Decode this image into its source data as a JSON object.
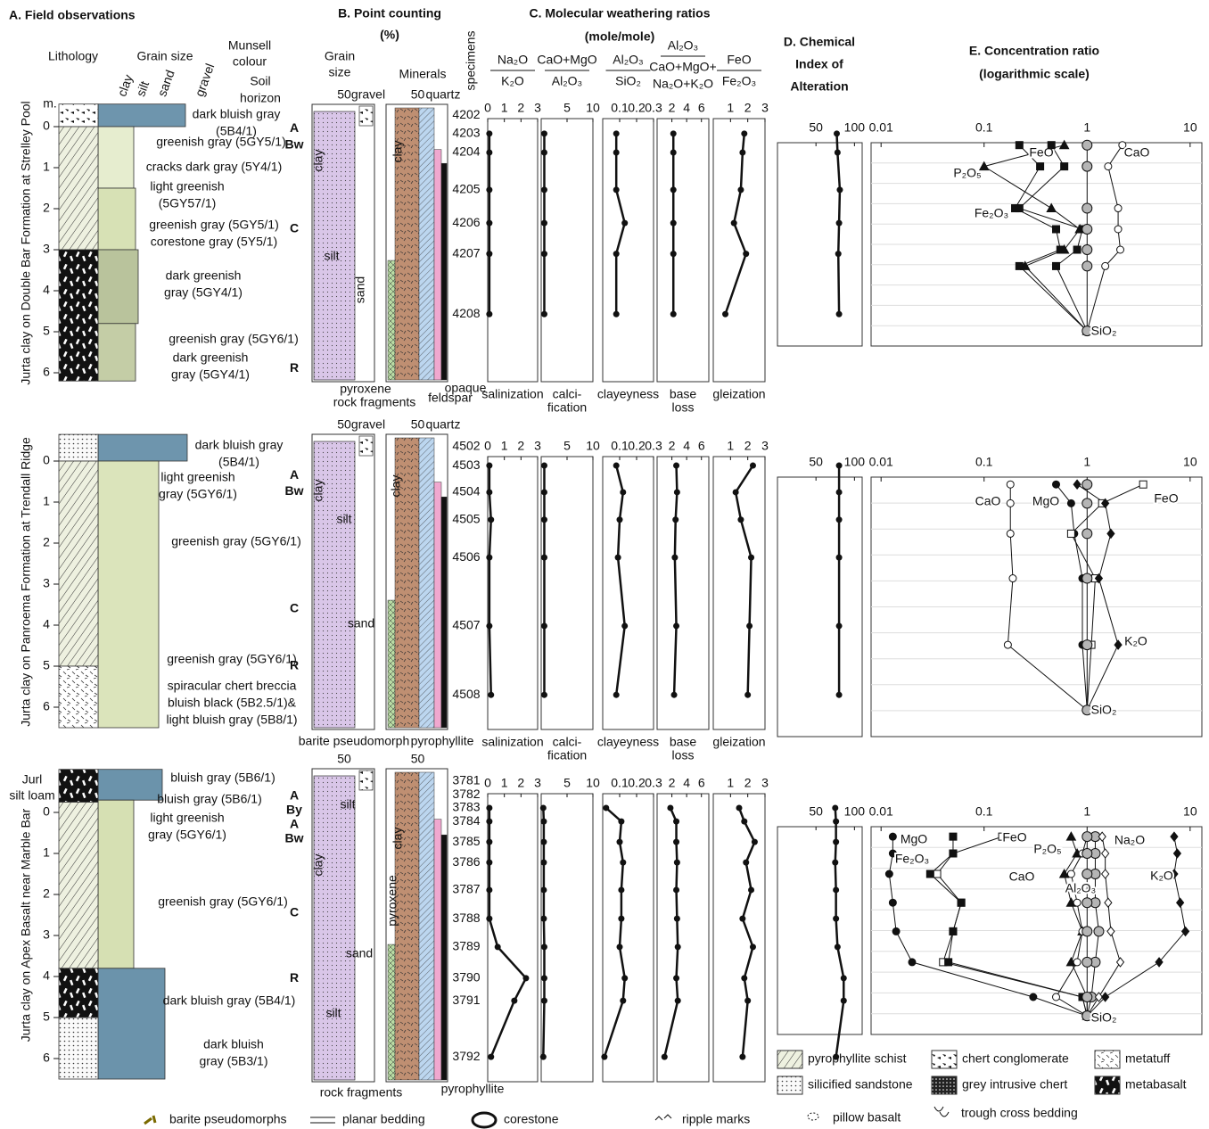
{
  "headers": {
    "field": "A. Field observations",
    "lithology": "Lithology",
    "grain_size": "Grain size",
    "munsell": [
      "Munsell",
      "colour"
    ],
    "horizon": [
      "Soil",
      "horizon"
    ],
    "grain_classes": [
      "clay",
      "silt",
      "sand",
      "gravel"
    ],
    "depth_unit": "m.",
    "point_counting": [
      "B. Point counting",
      "(%)"
    ],
    "pc_grain": [
      "Grain",
      "size"
    ],
    "pc_minerals": "Minerals",
    "ratios": [
      "C. Molecular weathering ratios",
      "(mole/mole)"
    ],
    "cia": [
      "D. Chemical",
      "Index of",
      "Alteration"
    ],
    "conc": [
      "E. Concentration ratio",
      "(logarithmic scale)"
    ],
    "specimens": "specimens"
  },
  "ratio_charts": [
    {
      "numerator": [
        "Na₂O"
      ],
      "denominator": [
        "K₂O"
      ],
      "name": [
        "salinization"
      ],
      "xlim": [
        0,
        3
      ],
      "xticks": [
        0,
        1,
        2,
        3
      ]
    },
    {
      "numerator": [
        "CaO+MgO"
      ],
      "denominator": [
        "Al₂O₃"
      ],
      "name": [
        "calci-",
        "fication"
      ],
      "xlim": [
        0,
        10
      ],
      "xticks": [
        5,
        10
      ]
    },
    {
      "numerator": [
        "Al₂O₃"
      ],
      "denominator": [
        "SiO₂"
      ],
      "name": [
        "clayeyness"
      ],
      "xlim": [
        0,
        0.3
      ],
      "xticks": [
        0.1,
        0.2,
        0.3
      ]
    },
    {
      "numerator": [
        "Al₂O₃"
      ],
      "denominator": [
        "CaO+MgO+",
        "Na₂O+K₂O"
      ],
      "name": [
        "base",
        "loss"
      ],
      "xlim": [
        0,
        7
      ],
      "xticks": [
        2,
        4,
        6
      ]
    },
    {
      "numerator": [
        "FeO"
      ],
      "denominator": [
        "Fe₂O₃"
      ],
      "name": [
        "gleization"
      ],
      "xlim": [
        0,
        3
      ],
      "xticks": [
        1,
        2,
        3
      ]
    }
  ],
  "cia_axis": {
    "xlim": [
      0,
      110
    ],
    "xticks": [
      50,
      100
    ]
  },
  "conc_axis": {
    "xlim": [
      0.008,
      13
    ],
    "xticks": [
      0.01,
      0.1,
      1,
      10
    ],
    "log": true
  },
  "profiles": [
    {
      "label": "Jurta clay on Double Bar Formation at Strelley Pool",
      "depth_ticks": [
        0,
        1,
        2,
        3,
        4,
        5,
        6
      ],
      "horizons": [
        {
          "text": "A",
          "depth": 0.05
        },
        {
          "text": "Bw",
          "depth": 0.45
        },
        {
          "text": "C",
          "depth": 2.5
        },
        {
          "text": "R",
          "depth": 5.9
        }
      ],
      "descriptions": [
        [
          "dark bluish gray",
          "(5B4/1)"
        ],
        [
          "greenish gray (5GY5/1)"
        ],
        [
          "cracks dark gray (5Y4/1)"
        ],
        [
          "light greenish",
          "(5GY57/1)"
        ],
        [
          "greenish gray (5GY5/1)",
          "corestone gray (5Y5/1)"
        ],
        [
          "dark greenish",
          "gray (5GY4/1)"
        ],
        [
          "greenish gray (5GY6/1)"
        ],
        [
          "dark greenish",
          "gray (5GY4/1)"
        ]
      ],
      "point_counting": {
        "grain_ticks": [
          50
        ],
        "mineral_ticks": [
          50
        ],
        "top": [
          "gravel",
          "quartz"
        ],
        "inside": [
          "clay",
          "silt",
          "sand",
          "clay"
        ],
        "bottom": [
          "pyroxene",
          "rock fragments",
          "feldspar",
          "opaque"
        ]
      },
      "specimens": [
        {
          "id": "4202",
          "depth": -0.28
        },
        {
          "id": "4203",
          "depth": 0.17
        },
        {
          "id": "4204",
          "depth": 0.63
        },
        {
          "id": "4205",
          "depth": 1.54
        },
        {
          "id": "4206",
          "depth": 2.35
        },
        {
          "id": "4207",
          "depth": 3.1
        },
        {
          "id": "4208",
          "depth": 4.57
        }
      ],
      "ratio_depths": [
        0.17,
        0.63,
        1.54,
        2.35,
        3.1,
        4.57
      ],
      "ratios": [
        [
          0.1,
          0.1,
          0.1,
          0.1,
          0.1,
          0.1
        ],
        [
          0.6,
          0.6,
          0.6,
          0.6,
          0.6,
          0.6
        ],
        [
          0.08,
          0.08,
          0.08,
          0.13,
          0.08,
          0.08
        ],
        [
          2.2,
          2.2,
          2.2,
          2.2,
          2.2,
          2.2
        ],
        [
          1.8,
          1.7,
          1.6,
          1.2,
          1.9,
          0.7
        ]
      ],
      "cia": [
        77,
        78,
        81,
        80,
        79,
        80
      ],
      "conc": {
        "depths": [
          0.45,
          0.97,
          1.99,
          2.5,
          3.0,
          3.4,
          4.98
        ],
        "series": [
          {
            "name": "FeO",
            "marker": "black-square",
            "values": [
              0.22,
              0.35,
              0.2,
              0.5,
              0.55,
              0.22,
              1
            ]
          },
          {
            "name": "P₂O₅",
            "marker": "triangle",
            "values": [
              0.6,
              0.1,
              0.45,
              0.85,
              0.6,
              0.25,
              1
            ]
          },
          {
            "name": "Fe₂O₃",
            "marker": "black-square",
            "values": [
              0.45,
              0.6,
              0.22,
              0.9,
              0.8,
              0.5,
              1
            ]
          },
          {
            "name": "CaO",
            "marker": "open-circle",
            "values": [
              2.2,
              1.6,
              2.0,
              2.0,
              2.1,
              1.5,
              1
            ]
          },
          {
            "name": "SiO₂",
            "marker": "gray-circle",
            "values": [
              1,
              1,
              1,
              1,
              1,
              1,
              1
            ]
          }
        ]
      }
    },
    {
      "label": "Jurta clay on Panroema Formation at Trendall Ridge",
      "depth_ticks": [
        0,
        1,
        2,
        3,
        4,
        5,
        6
      ],
      "horizons": [
        {
          "text": "A",
          "depth": 0.35
        },
        {
          "text": "Bw",
          "depth": 0.75
        },
        {
          "text": "C",
          "depth": 3.6
        },
        {
          "text": "R",
          "depth": 5.0
        }
      ],
      "descriptions": [
        [
          "dark bluish gray",
          "(5B4/1)"
        ],
        [
          "light greenish",
          "gray (5GY6/1)"
        ],
        [
          "greenish gray (5GY6/1)"
        ],
        [
          "greenish gray (5GY6/1)"
        ],
        [
          "spiracular chert breccia",
          "bluish black (5B2.5/1)&",
          "light bluish gray (5B8/1)"
        ]
      ],
      "point_counting": {
        "grain_ticks": [
          50
        ],
        "mineral_ticks": [
          50
        ],
        "top": [
          "gravel",
          "quartz"
        ],
        "inside": [
          "clay",
          "silt",
          "sand",
          "clay"
        ],
        "bottom": [
          "barite pseudomorph",
          "pyrophyllite"
        ]
      },
      "specimens": [
        {
          "id": "4502",
          "depth": -0.35
        },
        {
          "id": "4503",
          "depth": 0.11
        },
        {
          "id": "4504",
          "depth": 0.76
        },
        {
          "id": "4505",
          "depth": 1.43
        },
        {
          "id": "4506",
          "depth": 2.35
        },
        {
          "id": "4507",
          "depth": 4.02
        },
        {
          "id": "4508",
          "depth": 5.7
        }
      ],
      "ratio_depths": [
        0.11,
        0.76,
        1.43,
        2.35,
        4.02,
        5.7
      ],
      "ratios": [
        [
          0.1,
          0.1,
          0.2,
          0.1,
          0.1,
          0.2
        ],
        [
          0.6,
          0.6,
          0.6,
          0.6,
          0.6,
          0.6
        ],
        [
          0.08,
          0.12,
          0.1,
          0.09,
          0.13,
          0.08
        ],
        [
          2.6,
          2.7,
          2.5,
          2.4,
          2.6,
          2.3
        ],
        [
          2.3,
          1.3,
          1.6,
          2.2,
          2.1,
          2.0
        ]
      ],
      "cia": [
        80,
        80,
        80,
        80,
        80,
        80
      ],
      "conc": {
        "depths": [
          0.57,
          1.03,
          1.77,
          2.86,
          4.48,
          6.07
        ],
        "series": [
          {
            "name": "CaO",
            "marker": "open-circle",
            "values": [
              0.18,
              0.18,
              0.18,
              0.19,
              0.17,
              1
            ]
          },
          {
            "name": "MgO",
            "marker": "black-circle",
            "values": [
              0.5,
              0.7,
              0.75,
              0.9,
              0.9,
              1
            ]
          },
          {
            "name": "FeO",
            "marker": "open-square",
            "values": [
              3.5,
              1.4,
              0.7,
              1.2,
              1.1,
              1
            ]
          },
          {
            "name": "K₂O",
            "marker": "black-diamond",
            "values": [
              0.8,
              1.5,
              1.7,
              1.3,
              2.0,
              1
            ]
          },
          {
            "name": "SiO₂",
            "marker": "gray-circle",
            "values": [
              1,
              1,
              1,
              1,
              1,
              1
            ]
          }
        ]
      }
    },
    {
      "label": "Jurta clay on Apex Basalt near Marble Bar",
      "extra": [
        "Jurl",
        "silt loam"
      ],
      "depth_ticks": [
        0,
        1,
        2,
        3,
        4,
        5,
        6
      ],
      "horizons": [
        {
          "text": "A",
          "depth": -0.4
        },
        {
          "text": "By",
          "depth": -0.05
        },
        {
          "text": "A",
          "depth": 0.3
        },
        {
          "text": "Bw",
          "depth": 0.65
        },
        {
          "text": "C",
          "depth": 2.45
        },
        {
          "text": "R",
          "depth": 4.05
        }
      ],
      "descriptions": [
        [
          "bluish gray (5B6/1)"
        ],
        [
          "bluish gray (5B6/1)"
        ],
        [
          "light greenish",
          "gray (5GY6/1)"
        ],
        [
          "greenish gray (5GY6/1)"
        ],
        [
          "dark bluish gray (5B4/1)"
        ],
        [
          "dark bluish",
          "gray (5B3/1)"
        ]
      ],
      "point_counting": {
        "grain_ticks": [
          50
        ],
        "mineral_ticks": [
          50
        ],
        "top": [],
        "inside": [
          "silt",
          "clay",
          "sand",
          "silt",
          "pyroxene",
          "clay"
        ],
        "bottom": [
          "rock fragments",
          "pyrophyllite"
        ]
      },
      "specimens": [
        {
          "id": "3781",
          "depth": -0.76
        },
        {
          "id": "3782",
          "depth": -0.43
        },
        {
          "id": "3783",
          "depth": -0.11
        },
        {
          "id": "3784",
          "depth": 0.22
        },
        {
          "id": "3785",
          "depth": 0.72
        },
        {
          "id": "3786",
          "depth": 1.22
        },
        {
          "id": "3787",
          "depth": 1.89
        },
        {
          "id": "3788",
          "depth": 2.59
        },
        {
          "id": "3789",
          "depth": 3.28
        },
        {
          "id": "3790",
          "depth": 4.04
        },
        {
          "id": "3791",
          "depth": 4.59
        },
        {
          "id": "3792",
          "depth": 5.96
        }
      ],
      "ratio_depths": [
        -0.11,
        0.22,
        0.72,
        1.22,
        1.89,
        2.59,
        3.28,
        4.04,
        4.59,
        5.96
      ],
      "ratios": [
        [
          0.1,
          0.1,
          0.1,
          0.1,
          0.1,
          0.1,
          0.6,
          2.3,
          1.6,
          0.2
        ],
        [
          0.4,
          0.5,
          0.5,
          0.5,
          0.5,
          0.5,
          0.6,
          0.6,
          0.6,
          0.4
        ],
        [
          0.02,
          0.11,
          0.1,
          0.12,
          0.11,
          0.11,
          0.1,
          0.13,
          0.12,
          0.01
        ],
        [
          1.8,
          2.6,
          2.6,
          2.7,
          2.6,
          2.7,
          2.8,
          2.6,
          2.8,
          1.0
        ],
        [
          1.5,
          1.8,
          2.4,
          1.9,
          2.2,
          1.7,
          2.3,
          1.8,
          2.0,
          1.7
        ]
      ],
      "cia": [
        75,
        76,
        76,
        75,
        76,
        76,
        78,
        86,
        86,
        76
      ],
      "conc": {
        "depths": [
          0.59,
          1.0,
          1.5,
          2.2,
          2.9,
          3.65,
          4.5,
          4.96
        ],
        "series": [
          {
            "name": "MgO",
            "marker": "black-circle",
            "values": [
              0.013,
              0.013,
              0.012,
              0.013,
              0.014,
              0.02,
              0.3,
              1
            ]
          },
          {
            "name": "FeO",
            "marker": "open-square",
            "values": [
              0.15,
              0.05,
              0.035,
              0.06,
              0.05,
              0.04,
              0.9,
              1
            ]
          },
          {
            "name": "Fe₂O₃",
            "marker": "black-square",
            "values": [
              0.05,
              0.05,
              0.03,
              0.06,
              0.05,
              0.045,
              0.9,
              1
            ]
          },
          {
            "name": "P₂O₅",
            "marker": "triangle",
            "values": [
              0.7,
              0.8,
              0.6,
              0.7,
              0.9,
              0.7,
              1.0,
              1
            ]
          },
          {
            "name": "CaO",
            "marker": "open-circle",
            "values": [
              1.0,
              0.9,
              0.7,
              0.8,
              0.9,
              0.8,
              0.5,
              1
            ]
          },
          {
            "name": "Al₂O₃",
            "marker": "gray-circle",
            "values": [
              1.2,
              1.2,
              1.2,
              1.2,
              1.3,
              1.2,
              1.1,
              1
            ]
          },
          {
            "name": "Na₂O",
            "marker": "open-diamond",
            "values": [
              1.4,
              1.5,
              1.5,
              1.6,
              1.7,
              2.1,
              1.3,
              1
            ]
          },
          {
            "name": "K₂O",
            "marker": "black-diamond",
            "values": [
              7,
              7.5,
              7,
              8,
              9,
              5,
              1.5,
              1
            ]
          },
          {
            "name": "SiO₂",
            "marker": "gray-circle",
            "values": [
              1,
              1,
              1,
              1,
              1,
              1,
              1,
              1
            ]
          }
        ]
      }
    }
  ],
  "legend": {
    "patterns": [
      "pyrophyllite schist",
      "silicified sandstone",
      "chert conglomerate",
      "grey intrusive chert",
      "metatuff",
      "metabasalt"
    ],
    "symbols": [
      "barite pseudomorphs",
      "planar bedding",
      "corestone",
      "ripple marks",
      "pillow basalt",
      "trough cross bedding"
    ]
  }
}
